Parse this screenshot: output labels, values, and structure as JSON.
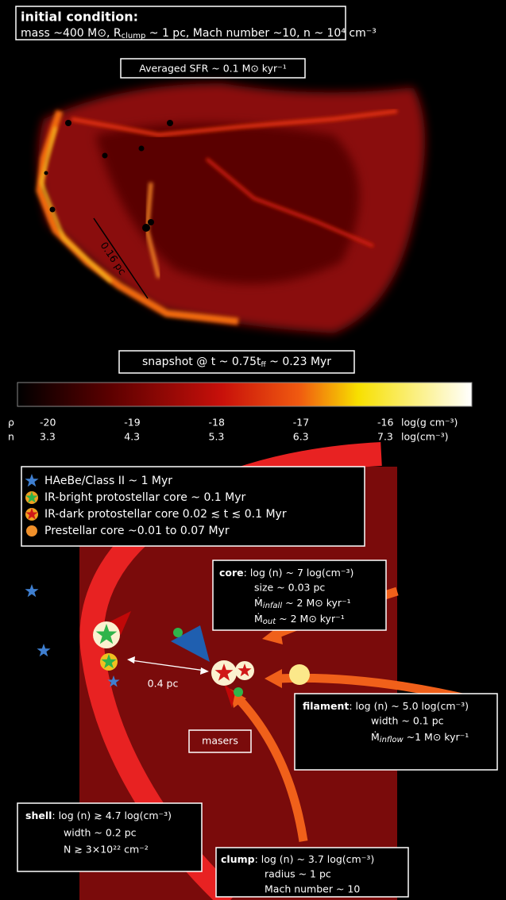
{
  "top_panel": {
    "initial_condition": {
      "heading": "initial condition:",
      "line": [
        "mass ~400 M⊙,  R",
        "clump",
        " ~ 1 pc, Mach number ~10, n ~ 10⁴ cm⁻³"
      ]
    },
    "sfr_label": "Averaged SFR ~ 0.1 M⊙ kyr⁻¹",
    "scale_label": "0.16 pc",
    "snapshot_label": [
      "snapshot @ t ~ 0.75t",
      "ff",
      " ~ 0.23 Myr"
    ]
  },
  "colorbar": {
    "rho_label": "ρ",
    "n_label": "n",
    "rho_ticks": [
      "-20",
      "-19",
      "-18",
      "-17",
      "-16"
    ],
    "n_ticks": [
      "3.3",
      "4.3",
      "5.3",
      "6.3",
      "7.3"
    ],
    "rho_unit": "log(g cm⁻³)",
    "n_unit": "log(cm⁻³)"
  },
  "legend": [
    {
      "label": "HAeBe/Class II    ~ 1 Myr"
    },
    {
      "label": "IR-bright protostellar core  ~ 0.1 Myr"
    },
    {
      "label": "IR-dark protostellar core  0.02 ≲ t ≲ 0.1 Myr"
    },
    {
      "label": "Prestellar core  ~0.01 to 0.07 Myr"
    }
  ],
  "annotations": {
    "distance": "0.4 pc",
    "masers": "masers"
  },
  "boxes": {
    "core": {
      "title": "core",
      "lines": [
        ": log (n) ~ 7 log(cm⁻³)",
        "size ~ 0.03 pc",
        [
          "Ṁ",
          "infall",
          " ~ 2 M⊙ kyr⁻¹"
        ],
        [
          "Ṁ",
          "out",
          " ~ 2 M⊙ kyr⁻¹"
        ]
      ]
    },
    "filament": {
      "title": "filament",
      "lines": [
        ": log (n) ~ 5.0  log(cm⁻³)",
        "width ~ 0.1 pc",
        [
          "Ṁ",
          "inflow",
          " ~1 M⊙ kyr⁻¹"
        ]
      ]
    },
    "shell": {
      "title": "shell",
      "lines": [
        ": log (n) ≳ 4.7  log(cm⁻³)",
        "width ~ 0.2 pc",
        "N ≳ 3×10²² cm⁻²"
      ]
    },
    "clump": {
      "title": "clump",
      "lines": [
        ": log (n) ~ 3.7 log(cm⁻³)",
        "radius ~ 1 pc",
        "Mach number ~ 10"
      ]
    }
  }
}
